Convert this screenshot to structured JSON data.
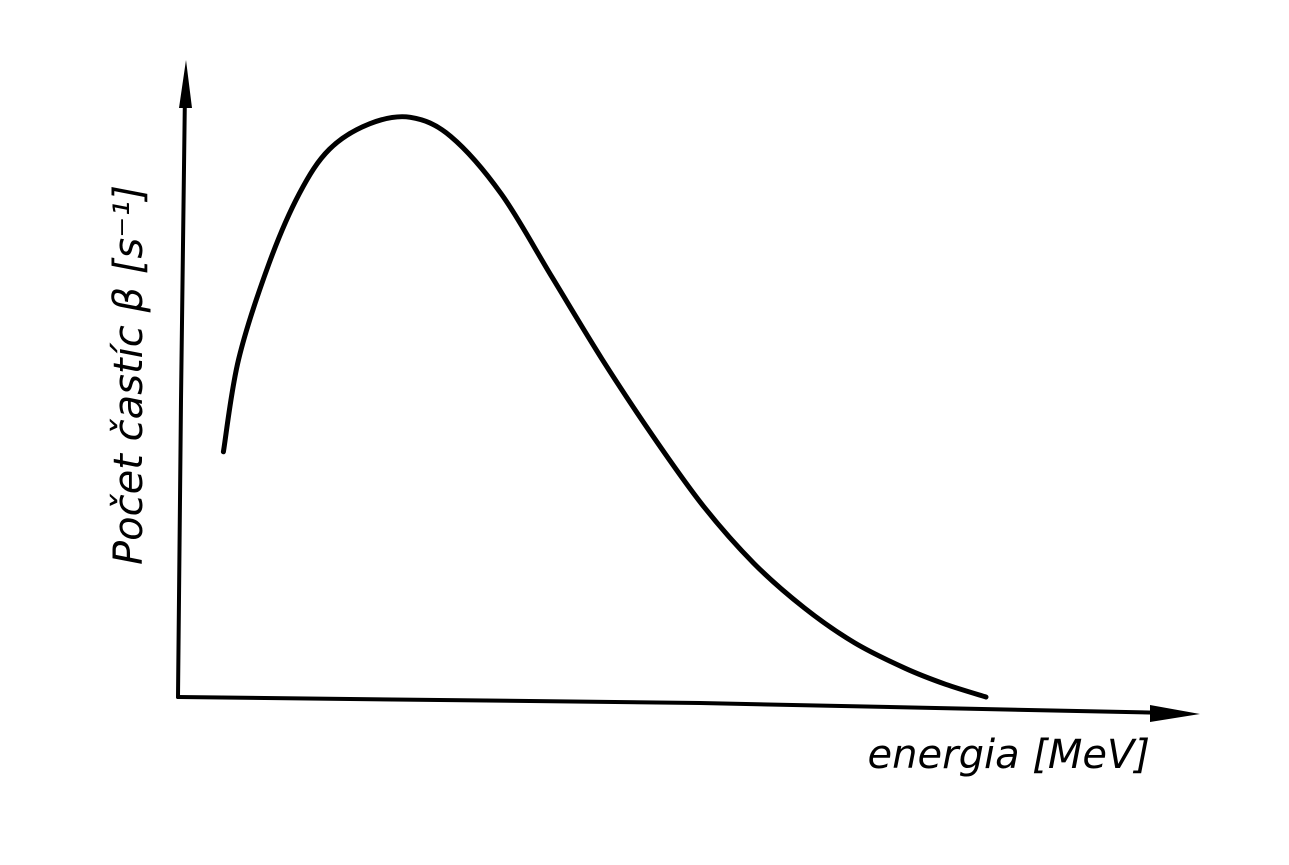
{
  "chart_data": {
    "type": "line",
    "xlabel": "energia [MeV]",
    "ylabel": "Počet častíc β [s⁻¹]",
    "xlim": [
      0,
      1
    ],
    "ylim": [
      0,
      1
    ],
    "grid": false,
    "axis_ticks": false,
    "series": [
      {
        "x": [
          0.045,
          0.06,
          0.09,
          0.12,
          0.15,
          0.19,
          0.23,
          0.27,
          0.32,
          0.37,
          0.42,
          0.47,
          0.52,
          0.57,
          0.62,
          0.67,
          0.72,
          0.76,
          0.8
        ],
        "y": [
          0.385,
          0.53,
          0.68,
          0.79,
          0.86,
          0.9,
          0.91,
          0.88,
          0.79,
          0.66,
          0.53,
          0.41,
          0.3,
          0.21,
          0.14,
          0.085,
          0.045,
          0.02,
          0.0
        ]
      }
    ]
  }
}
